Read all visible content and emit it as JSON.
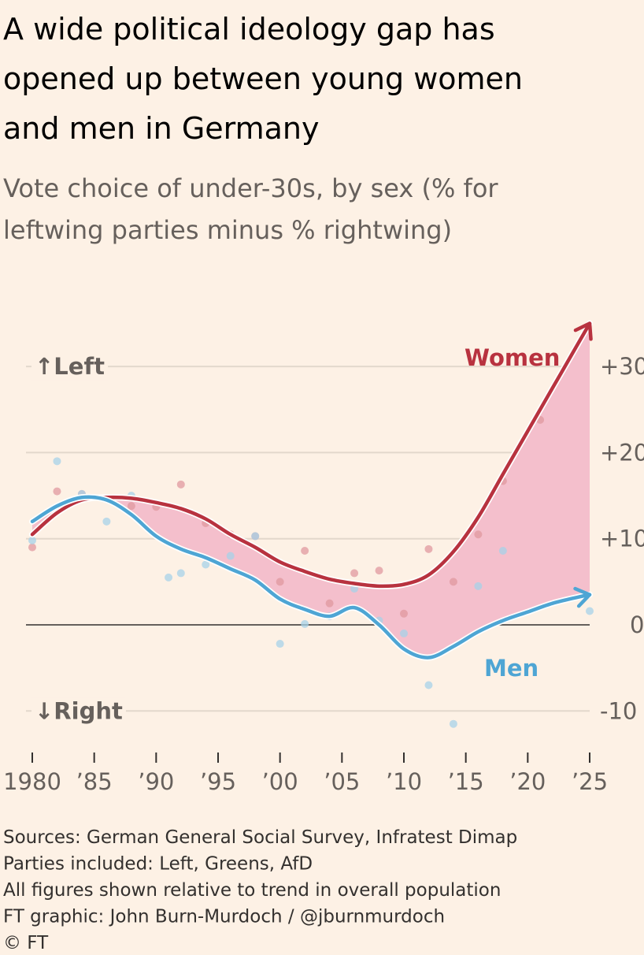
{
  "chart_data": {
    "type": "line",
    "title": "A wide political ideology gap has opened up between young women and men in Germany",
    "subtitle": "Vote choice of under-30s, by sex (% for leftwing parties minus % rightwing)",
    "annotations": [
      "↑Left",
      "↓Right"
    ],
    "xlim": [
      1980,
      2025
    ],
    "xticks": [
      1980,
      {
        "value": 1985,
        "label": "’85"
      },
      {
        "value": 1990,
        "label": "’90"
      },
      {
        "value": 1995,
        "label": "’95"
      },
      {
        "value": 2000,
        "label": "’00"
      },
      {
        "value": 2005,
        "label": "’05"
      },
      {
        "value": 2010,
        "label": "’10"
      },
      {
        "value": 2015,
        "label": "’15"
      },
      {
        "value": 2020,
        "label": "’20"
      },
      {
        "value": 2025,
        "label": "’25"
      }
    ],
    "ylim": [
      -13,
      36
    ],
    "yticks": [
      {
        "value": 30,
        "label": "+30"
      },
      {
        "value": 20,
        "label": "+20"
      },
      {
        "value": 10,
        "label": "+10"
      },
      0,
      {
        "value": -10,
        "label": "-10"
      }
    ],
    "grid": true,
    "series": [
      {
        "name": "Women",
        "color": "#b8323f",
        "point_color": "#e0989f",
        "x": [
          1980,
          1982,
          1984,
          1986,
          1988,
          1990,
          1992,
          1994,
          1996,
          1998,
          2000,
          2002,
          2004,
          2006,
          2008,
          2010,
          2012,
          2014,
          2016,
          2018,
          2020,
          2022,
          2024,
          2025
        ],
        "values": [
          10.5,
          13,
          14.5,
          14.8,
          14.7,
          14.2,
          13.5,
          12.3,
          10.5,
          9,
          7.3,
          6.2,
          5.3,
          4.8,
          4.5,
          4.7,
          5.8,
          8.5,
          12.5,
          17.5,
          22.5,
          27.5,
          32.5,
          35
        ],
        "points_x": [
          1980,
          1982,
          1984,
          1988,
          1990,
          1992,
          1994,
          1996,
          1998,
          2000,
          2002,
          2004,
          2006,
          2008,
          2010,
          2012,
          2014,
          2016,
          2018,
          2021
        ],
        "points": [
          9,
          15.5,
          15.2,
          13.8,
          13.7,
          16.3,
          11.8,
          10.5,
          10.3,
          5,
          8.6,
          2.5,
          6,
          6.3,
          1.3,
          8.8,
          5,
          10.5,
          16.7,
          23.8
        ]
      },
      {
        "name": "Men",
        "color": "#4ea5d4",
        "point_color": "#a7d2e8",
        "x": [
          1980,
          1982,
          1984,
          1986,
          1988,
          1990,
          1992,
          1994,
          1996,
          1998,
          2000,
          2002,
          2004,
          2006,
          2008,
          2010,
          2012,
          2014,
          2016,
          2018,
          2020,
          2022,
          2024,
          2025
        ],
        "values": [
          12,
          13.8,
          14.8,
          14.5,
          12.8,
          10.3,
          8.8,
          7.8,
          6.5,
          5.2,
          3,
          1.8,
          1,
          2,
          0,
          -2.8,
          -3.8,
          -2.5,
          -0.8,
          0.5,
          1.5,
          2.5,
          3.2,
          3.5
        ],
        "points_x": [
          1980,
          1982,
          1984,
          1986,
          1988,
          1991,
          1992,
          1994,
          1996,
          1998,
          2000,
          2002,
          2004,
          2006,
          2008,
          2010,
          2012,
          2014,
          2016,
          2018,
          2025
        ],
        "points": [
          9.8,
          19,
          15.2,
          12,
          15,
          5.5,
          6,
          7,
          8,
          10.3,
          -2.2,
          0.1,
          1,
          4.2,
          0.5,
          -1,
          -7,
          -11.5,
          4.5,
          8.6,
          1.6
        ]
      }
    ],
    "fill_between_color": "#f4bfcc",
    "footer": [
      "Sources: German General Social Survey, Infratest Dimap",
      "Parties included: Left, Greens, AfD",
      "All figures shown relative to trend in overall population",
      "FT graphic: John Burn-Murdoch / @jburnmurdoch",
      "© FT"
    ]
  }
}
